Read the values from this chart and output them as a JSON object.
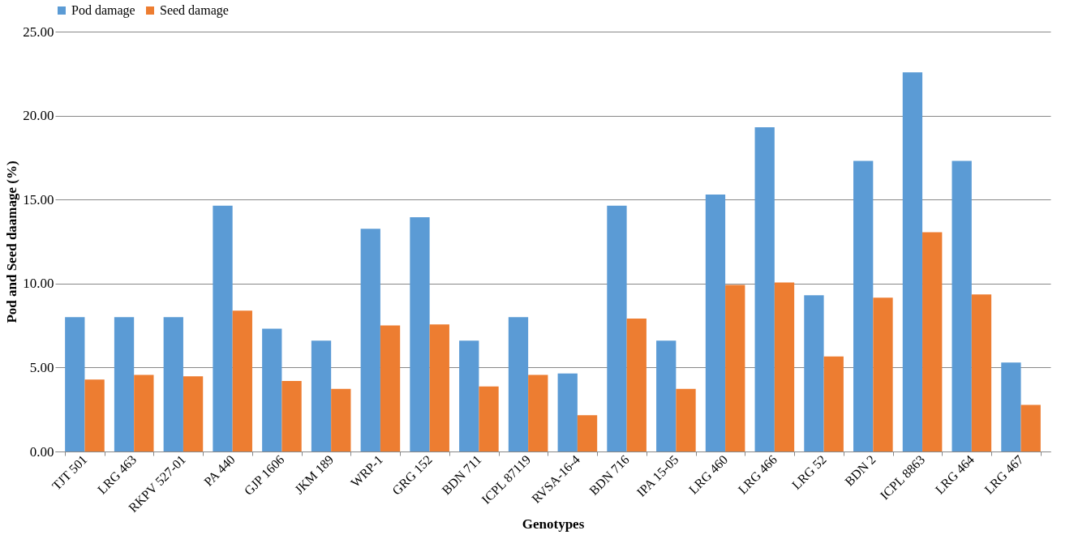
{
  "chart_data": {
    "type": "bar",
    "xlabel": "Genotypes",
    "ylabel": "Pod and Seed daamage (%)",
    "categories": [
      "TJT 501",
      "LRG 463",
      "RKPV 527-01",
      "PA 440",
      "GJP 1606",
      "JKM 189",
      "WRP-1",
      "GRG 152",
      "BDN 711",
      "ICPL 87119",
      "RVSA-16-4",
      "BDN 716",
      "IPA 15-05",
      "LRG 460",
      "LRG 466",
      "LRG 52",
      "BDN 2",
      "ICPL 8863",
      "LRG 464",
      "LRG 467"
    ],
    "series": [
      {
        "name": "Pod damage",
        "color": "#5b9bd5",
        "values": [
          8.0,
          8.0,
          8.0,
          14.64,
          7.31,
          6.6,
          13.26,
          13.95,
          6.6,
          8.0,
          4.64,
          14.64,
          6.6,
          15.3,
          19.3,
          9.3,
          17.3,
          22.57,
          17.3,
          5.3
        ]
      },
      {
        "name": "Seed damage",
        "color": "#ed7d31",
        "values": [
          4.28,
          4.56,
          4.48,
          8.39,
          4.2,
          3.73,
          7.5,
          7.56,
          3.87,
          4.56,
          2.16,
          7.92,
          3.73,
          9.92,
          10.06,
          5.66,
          9.16,
          13.06,
          9.35,
          2.77
        ]
      }
    ],
    "ylim": [
      0,
      25
    ],
    "yticks": [
      {
        "value": 0,
        "label": "0.00"
      },
      {
        "value": 5,
        "label": "5.00"
      },
      {
        "value": 10,
        "label": "10.00"
      },
      {
        "value": 15,
        "label": "15.00"
      },
      {
        "value": 20,
        "label": "20.00"
      },
      {
        "value": 25,
        "label": "25.00"
      }
    ],
    "grid": "y",
    "legend": "top"
  }
}
